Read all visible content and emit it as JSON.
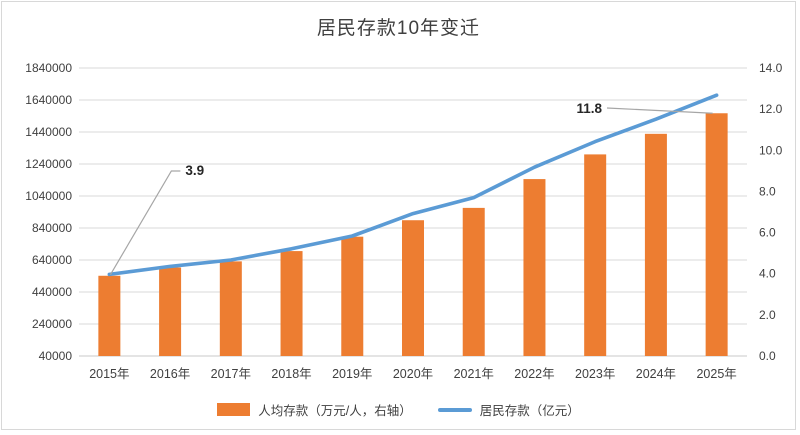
{
  "chart_data": {
    "type": "combo-bar-line",
    "title": "居民存款10年变迁",
    "categories": [
      "2015年",
      "2016年",
      "2017年",
      "2018年",
      "2019年",
      "2020年",
      "2021年",
      "2022年",
      "2023年",
      "2024年",
      "2025年"
    ],
    "series": [
      {
        "name": "人均存款（万元/人，右轴）",
        "type": "bar",
        "axis": "right",
        "color": "#ED7D31",
        "values": [
          3.9,
          4.3,
          4.6,
          5.1,
          5.8,
          6.6,
          7.2,
          8.6,
          9.8,
          10.8,
          11.8
        ]
      },
      {
        "name": "居民存款（亿元）",
        "type": "line",
        "axis": "left",
        "color": "#5B9BD5",
        "values": [
          550000,
          600000,
          640000,
          710000,
          790000,
          930000,
          1030000,
          1220000,
          1380000,
          1520000,
          1670000
        ]
      }
    ],
    "left_axis": {
      "min": 40000,
      "max": 1840000,
      "step": 200000,
      "ticks": [
        "1840000",
        "1640000",
        "1440000",
        "1240000",
        "1040000",
        "840000",
        "640000",
        "440000",
        "240000",
        "40000"
      ]
    },
    "right_axis": {
      "min": 0,
      "max": 14,
      "step": 2,
      "ticks": [
        "14.0",
        "12.0",
        "10.0",
        "8.0",
        "6.0",
        "4.0",
        "2.0",
        "0.0"
      ]
    },
    "annotations": [
      {
        "text": "3.9",
        "category": "2015年",
        "series": "人均存款（万元/人，右轴）"
      },
      {
        "text": "11.8",
        "category": "2025年",
        "series": "人均存款（万元/人，右轴）"
      }
    ],
    "legend_position": "bottom",
    "grid": true,
    "colors": {
      "grid": "#d9d9d9",
      "axis_line": "#c9c9c9",
      "axis_text": "#404040",
      "annotation_text": "#262626",
      "annotation_leader": "#a6a6a6"
    }
  }
}
